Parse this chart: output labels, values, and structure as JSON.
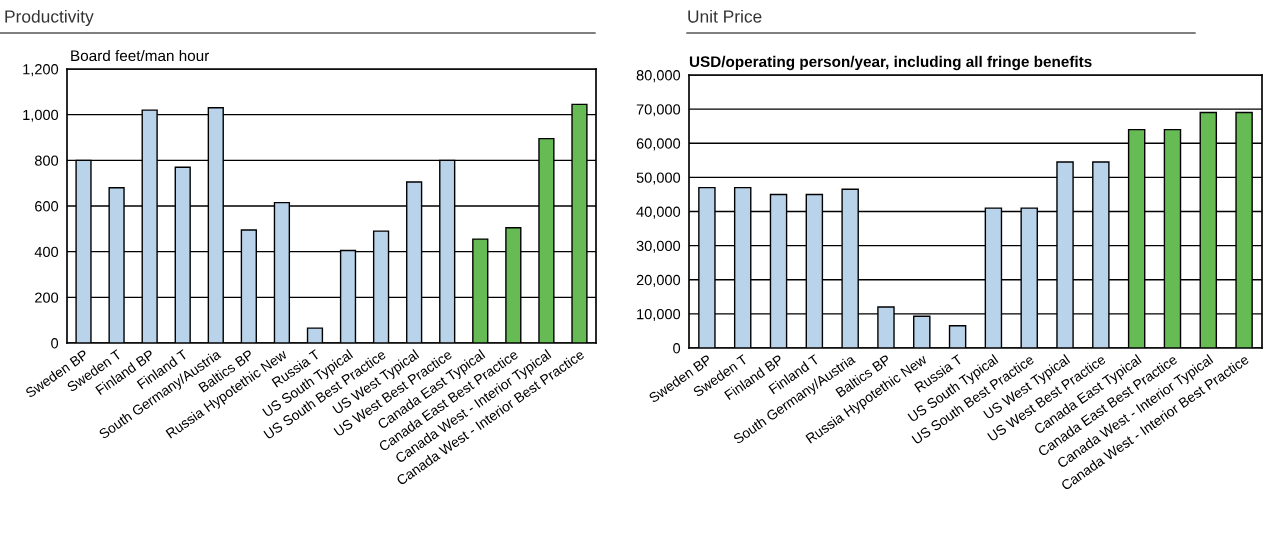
{
  "chart_data": [
    {
      "type": "bar",
      "title": "Productivity",
      "ylabel": "Board feet/man hour",
      "categories": [
        "Sweden BP",
        "Sweden T",
        "Finland BP",
        "Finland T",
        "South Germany/Austria",
        "Baltics BP",
        "Russia Hypotethic New",
        "Russia T",
        "US South Typical",
        "US South Best Practice",
        "US West Typical",
        "US West Best Practice",
        "Canada East Typical",
        "Canada East Best Practice",
        "Canada West - Interior Typical",
        "Canada West - Interior Best Practice"
      ],
      "values": [
        800,
        680,
        1020,
        770,
        1030,
        495,
        615,
        65,
        405,
        490,
        705,
        800,
        455,
        505,
        895,
        1045
      ],
      "colors": [
        "#b8d3ea",
        "#b8d3ea",
        "#b8d3ea",
        "#b8d3ea",
        "#b8d3ea",
        "#b8d3ea",
        "#b8d3ea",
        "#b8d3ea",
        "#b8d3ea",
        "#b8d3ea",
        "#b8d3ea",
        "#b8d3ea",
        "#66bb55",
        "#66bb55",
        "#66bb55",
        "#66bb55"
      ],
      "ylim": [
        0,
        1200
      ],
      "yticks": [
        {
          "value": 0,
          "label": "0"
        },
        {
          "value": 200,
          "label": "200"
        },
        {
          "value": 400,
          "label": "400"
        },
        {
          "value": 600,
          "label": "600"
        },
        {
          "value": 800,
          "label": "800"
        },
        {
          "value": 1000,
          "label": "1,000"
        },
        {
          "value": 1200,
          "label": "1,200"
        }
      ],
      "grid": "y"
    },
    {
      "type": "bar",
      "title": "Unit Price",
      "ylabel": "USD/operating person/year, including all fringe benefits",
      "categories": [
        "Sweden BP",
        "Sweden T",
        "Finland BP",
        "Finland T",
        "South Germany/Austria",
        "Baltics BP",
        "Russia Hypotethic New",
        "Russia T",
        "US South Typical",
        "US South Best Practice",
        "US West Typical",
        "US West Best Practice",
        "Canada East Typical",
        "Canada East Best Practice",
        "Canada West - Interior Typical",
        "Canada West - Interior Best Practice"
      ],
      "values": [
        47000,
        47000,
        45000,
        45000,
        46500,
        12000,
        9300,
        6500,
        41000,
        41000,
        54500,
        54500,
        64000,
        64000,
        69000,
        69000
      ],
      "colors": [
        "#b8d3ea",
        "#b8d3ea",
        "#b8d3ea",
        "#b8d3ea",
        "#b8d3ea",
        "#b8d3ea",
        "#b8d3ea",
        "#b8d3ea",
        "#b8d3ea",
        "#b8d3ea",
        "#b8d3ea",
        "#b8d3ea",
        "#66bb55",
        "#66bb55",
        "#66bb55",
        "#66bb55"
      ],
      "ylim": [
        0,
        80000
      ],
      "yticks": [
        {
          "value": 0,
          "label": "0"
        },
        {
          "value": 10000,
          "label": "10,000"
        },
        {
          "value": 20000,
          "label": "20,000"
        },
        {
          "value": 30000,
          "label": "30,000"
        },
        {
          "value": 40000,
          "label": "40,000"
        },
        {
          "value": 50000,
          "label": "50,000"
        },
        {
          "value": 60000,
          "label": "60,000"
        },
        {
          "value": 70000,
          "label": "70,000"
        },
        {
          "value": 80000,
          "label": "80,000"
        }
      ],
      "grid": "y"
    }
  ]
}
